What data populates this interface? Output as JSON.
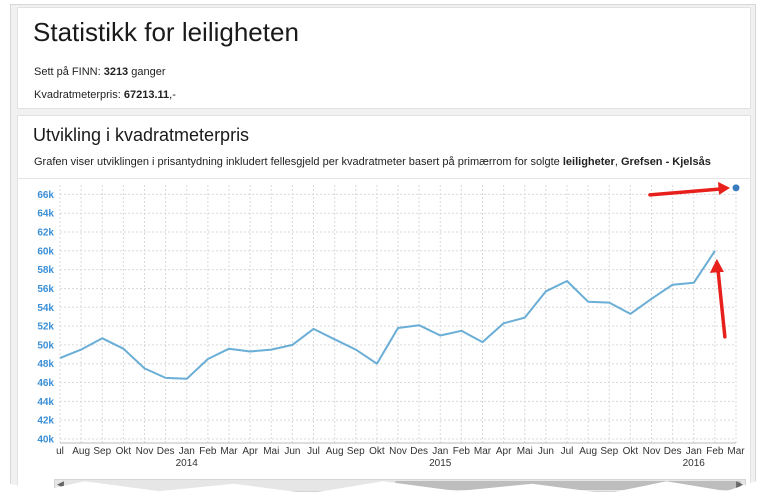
{
  "header": {
    "title": "Statistikk for leiligheten",
    "views_label": "Sett på FINN:",
    "views_value": "3213",
    "views_suffix": "ganger",
    "sqm_label": "Kvadratmeterpris:",
    "sqm_value": "67213.11",
    "sqm_suffix": ",-"
  },
  "section": {
    "title": "Utvikling i kvadratmeterpris",
    "desc_text": "Grafen viser utviklingen i prisantydning inkludert fellesgjeld per kvadratmeter basert på primærrom for solgte",
    "desc_type": "leiligheter",
    "desc_area": "Grefsen - Kjelsås"
  },
  "colors": {
    "line": "#6aaed6",
    "marker": "#3a7bbf",
    "arrow": "#e8201c",
    "y_tick": "#3a8fd6"
  },
  "chart_data": {
    "type": "line",
    "title": "",
    "xlabel": "",
    "ylabel": "",
    "ylim": [
      40000,
      67000
    ],
    "y_ticks": [
      {
        "value": 40000,
        "label": "40k"
      },
      {
        "value": 42000,
        "label": "42k"
      },
      {
        "value": 44000,
        "label": "44k"
      },
      {
        "value": 46000,
        "label": "46k"
      },
      {
        "value": 48000,
        "label": "48k"
      },
      {
        "value": 50000,
        "label": "50k"
      },
      {
        "value": 52000,
        "label": "52k"
      },
      {
        "value": 54000,
        "label": "54k"
      },
      {
        "value": 56000,
        "label": "56k"
      },
      {
        "value": 58000,
        "label": "58k"
      },
      {
        "value": 60000,
        "label": "60k"
      },
      {
        "value": 62000,
        "label": "62k"
      },
      {
        "value": 64000,
        "label": "64k"
      },
      {
        "value": 66000,
        "label": "66k"
      }
    ],
    "grid": true,
    "x": [
      "2013-07",
      "2013-08",
      "2013-09",
      "2013-10",
      "2013-11",
      "2013-12",
      "2014-01",
      "2014-02",
      "2014-03",
      "2014-04",
      "2014-05",
      "2014-06",
      "2014-07",
      "2014-08",
      "2014-09",
      "2014-10",
      "2014-11",
      "2014-12",
      "2015-01",
      "2015-02",
      "2015-03",
      "2015-04",
      "2015-05",
      "2015-06",
      "2015-07",
      "2015-08",
      "2015-09",
      "2015-10",
      "2015-11",
      "2015-12",
      "2016-01",
      "2016-02",
      "2016-03"
    ],
    "x_labels": [
      "ul",
      "Aug",
      "Sep",
      "Okt",
      "Nov",
      "Des",
      "Jan",
      "Feb",
      "Mar",
      "Apr",
      "Mai",
      "Jun",
      "Jul",
      "Aug",
      "Sep",
      "Okt",
      "Nov",
      "Des",
      "Jan",
      "Feb",
      "Mar",
      "Apr",
      "Mai",
      "Jun",
      "Jul",
      "Aug",
      "Sep",
      "Okt",
      "Nov",
      "Des",
      "Jan",
      "Feb",
      "Mar"
    ],
    "year_labels": [
      {
        "x": "2014-01",
        "label": "2014"
      },
      {
        "x": "2015-01",
        "label": "2015"
      },
      {
        "x": "2016-01",
        "label": "2016"
      }
    ],
    "series": [
      {
        "values": [
          48600,
          49500,
          50700,
          49600,
          47500,
          46500,
          46400,
          48500,
          49600,
          49300,
          49500,
          50000,
          51700,
          50600,
          49500,
          48000,
          51800,
          52100,
          51000,
          51500,
          50300,
          52300,
          52900,
          55700,
          56800,
          54600,
          54500,
          53300,
          54900,
          56400,
          56600,
          60000,
          66700
        ],
        "line_until_index": 31,
        "highlight_index": 32
      }
    ]
  }
}
